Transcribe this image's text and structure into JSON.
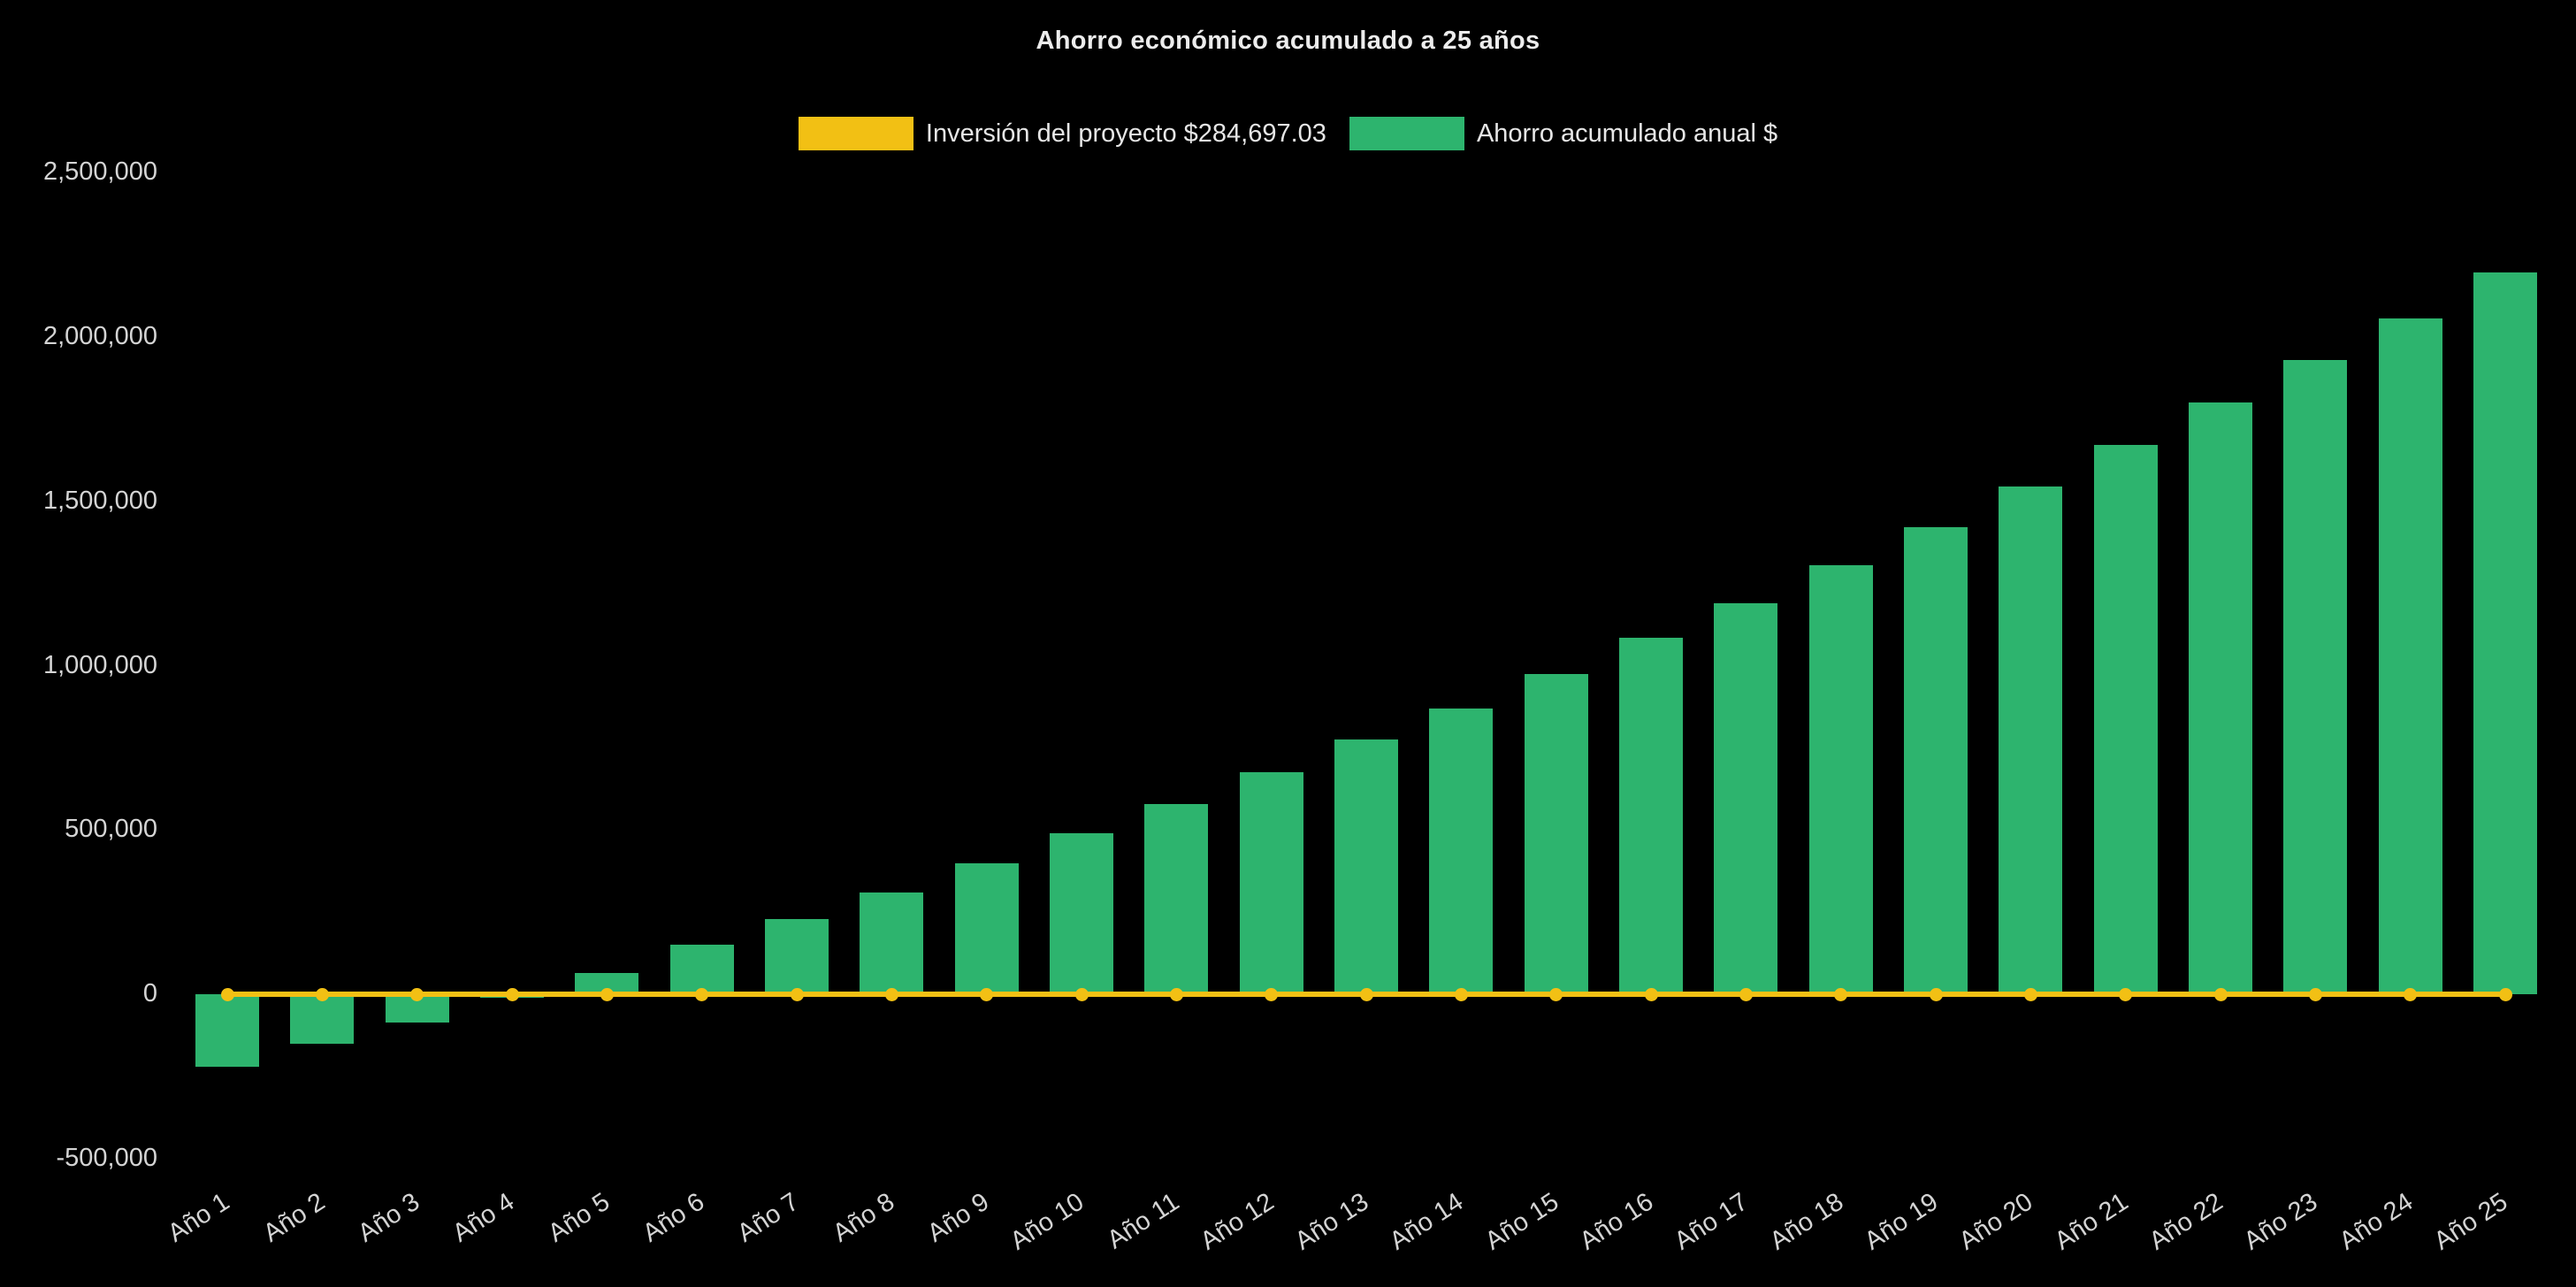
{
  "chart_data": {
    "type": "bar",
    "title": "Ahorro económico acumulado a 25 años",
    "background": "#000000",
    "text_color": "#d4d4d4",
    "grid": false,
    "legend_position": "top",
    "categories": [
      "Año 1",
      "Año 2",
      "Año 3",
      "Año 4",
      "Año 5",
      "Año 6",
      "Año 7",
      "Año 8",
      "Año 9",
      "Año 10",
      "Año 11",
      "Año 12",
      "Año 13",
      "Año 14",
      "Año 15",
      "Año 16",
      "Año 17",
      "Año 18",
      "Año 19",
      "Año 20",
      "Año 21",
      "Año 22",
      "Año 23",
      "Año 24",
      "Año 25"
    ],
    "ylim": [
      -500000,
      2500000
    ],
    "yticks": [
      -500000,
      0,
      500000,
      1000000,
      1500000,
      2000000,
      2500000
    ],
    "ytick_labels": [
      "-500,000",
      "0",
      "500,000",
      "1,000,000",
      "1,500,000",
      "2,000,000",
      "2,500,000"
    ],
    "series": [
      {
        "name": "Inversión del proyecto $284,697.03",
        "type": "line",
        "color": "#f2c014",
        "values": [
          0,
          0,
          0,
          0,
          0,
          0,
          0,
          0,
          0,
          0,
          0,
          0,
          0,
          0,
          0,
          0,
          0,
          0,
          0,
          0,
          0,
          0,
          0,
          0,
          0
        ]
      },
      {
        "name": "Ahorro acumulado anual $",
        "type": "bar",
        "color": "#2db46e",
        "values": [
          -220000,
          -150000,
          -85000,
          -10000,
          65000,
          150000,
          230000,
          310000,
          400000,
          490000,
          580000,
          675000,
          775000,
          870000,
          975000,
          1085000,
          1190000,
          1305000,
          1420000,
          1545000,
          1670000,
          1800000,
          1930000,
          2055000,
          2195000
        ]
      }
    ]
  }
}
